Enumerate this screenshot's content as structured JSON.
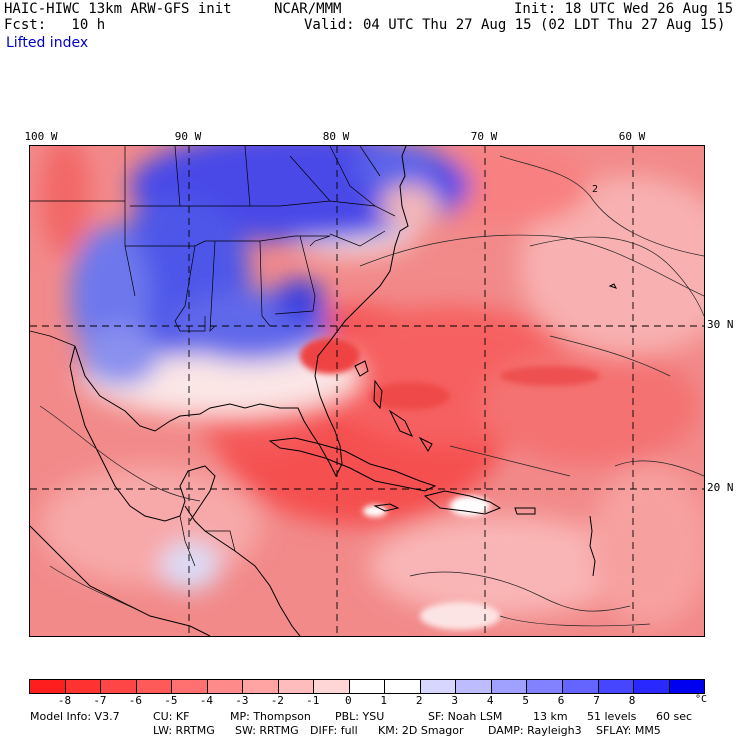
{
  "header": {
    "model": "HAIC-HIWC 13km ARW-GFS init",
    "org": "NCAR/MMM",
    "init": "Init: 18 UTC Wed 26 Aug 15",
    "fcst": "Fcst:   10 h",
    "valid": "Valid: 04 UTC Thu 27 Aug 15 (02 LDT Thu 27 Aug 15)",
    "field": "Lifted index"
  },
  "map": {
    "lon_labels": [
      "100 W",
      "90 W",
      "80 W",
      "70 W",
      "60 W"
    ],
    "lat_labels": [
      "30 N",
      "20 N"
    ],
    "contour_label": "2"
  },
  "colorbar": {
    "ticks": [
      "-8",
      "-7",
      "-6",
      "-5",
      "-4",
      "-3",
      "-2",
      "-1",
      "0",
      "1",
      "2",
      "3",
      "4",
      "5",
      "6",
      "7",
      "8"
    ],
    "unit": "°C",
    "colors": [
      "#ff1e1e",
      "#ff3232",
      "#ff4646",
      "#ff5a5a",
      "#ff7070",
      "#ff8a8a",
      "#ffa3a3",
      "#ffbcbc",
      "#ffd6d6",
      "#ffffff",
      "#ffffff",
      "#d6d6ff",
      "#bcbcff",
      "#a0a0ff",
      "#8282ff",
      "#6464ff",
      "#4646ff",
      "#2828ff",
      "#0000f0"
    ]
  },
  "footer": {
    "line1": [
      "Model Info: V3.7",
      "CU: KF",
      "MP: Thompson",
      "PBL: YSU",
      "SF: Noah LSM",
      "13 km",
      "51 levels",
      "60 sec"
    ],
    "line2": [
      "LW: RRTMG",
      "SW: RRTMG",
      "DIFF: full",
      "KM: 2D Smagor",
      "DAMP: Rayleigh3",
      "SFLAY: MM5"
    ]
  }
}
